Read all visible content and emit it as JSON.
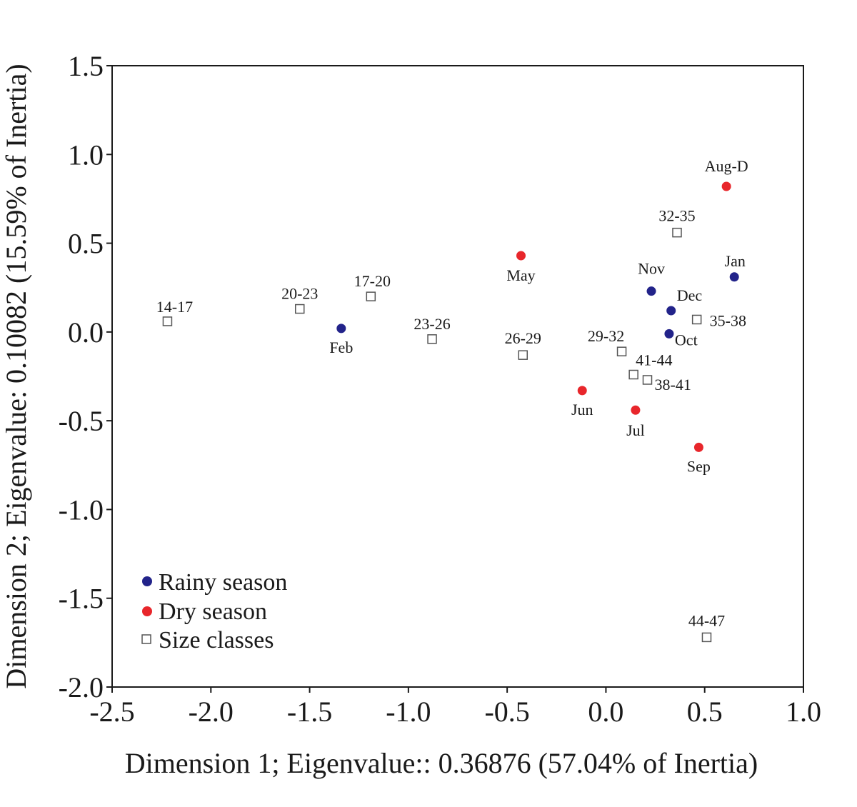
{
  "chart_data": {
    "type": "scatter",
    "xlabel": "Dimension 1; Eigenvalue:: 0.36876 (57.04% of Inertia)",
    "ylabel": "Dimension 2; Eigenvalue: 0.10082 (15.59% of Inertia)",
    "xlim": [
      -2.5,
      1.0
    ],
    "ylim": [
      -2.0,
      1.5
    ],
    "xticks": [
      "-2.5",
      "-2.0",
      "-1.5",
      "-1.0",
      "-0.5",
      "0.0",
      "0.5",
      "1.0"
    ],
    "yticks": [
      "1.5",
      "1.0",
      "0.5",
      "0.0",
      "-0.5",
      "-1.0",
      "-1.5",
      "-2.0"
    ],
    "grid": false,
    "legend_position": "bottom-left",
    "series": [
      {
        "name": "Rainy season",
        "marker": "filled-circle",
        "color": "#22238a",
        "points": [
          {
            "label": "Feb",
            "x": -1.34,
            "y": 0.02
          },
          {
            "label": "Nov",
            "x": 0.23,
            "y": 0.23
          },
          {
            "label": "Dec",
            "x": 0.33,
            "y": 0.12
          },
          {
            "label": "Oct",
            "x": 0.32,
            "y": -0.01
          },
          {
            "label": "Jan",
            "x": 0.65,
            "y": 0.31
          }
        ]
      },
      {
        "name": "Dry season",
        "marker": "filled-circle",
        "color": "#e8262b",
        "points": [
          {
            "label": "May",
            "x": -0.43,
            "y": 0.43
          },
          {
            "label": "Aug-D",
            "x": 0.61,
            "y": 0.82
          },
          {
            "label": "Jun",
            "x": -0.12,
            "y": -0.33
          },
          {
            "label": "Jul",
            "x": 0.15,
            "y": -0.44
          },
          {
            "label": "Sep",
            "x": 0.47,
            "y": -0.65
          }
        ]
      },
      {
        "name": "Size classes",
        "marker": "open-square",
        "color": "#555555",
        "points": [
          {
            "label": "14-17",
            "x": -2.22,
            "y": 0.06
          },
          {
            "label": "20-23",
            "x": -1.55,
            "y": 0.13
          },
          {
            "label": "17-20",
            "x": -1.19,
            "y": 0.2
          },
          {
            "label": "23-26",
            "x": -0.88,
            "y": -0.04
          },
          {
            "label": "26-29",
            "x": -0.42,
            "y": -0.13
          },
          {
            "label": "29-32",
            "x": 0.08,
            "y": -0.11
          },
          {
            "label": "41-44",
            "x": 0.14,
            "y": -0.24
          },
          {
            "label": "38-41",
            "x": 0.21,
            "y": -0.27
          },
          {
            "label": "32-35",
            "x": 0.36,
            "y": 0.56
          },
          {
            "label": "35-38",
            "x": 0.46,
            "y": 0.07
          },
          {
            "label": "44-47",
            "x": 0.51,
            "y": -1.72
          }
        ]
      }
    ]
  }
}
